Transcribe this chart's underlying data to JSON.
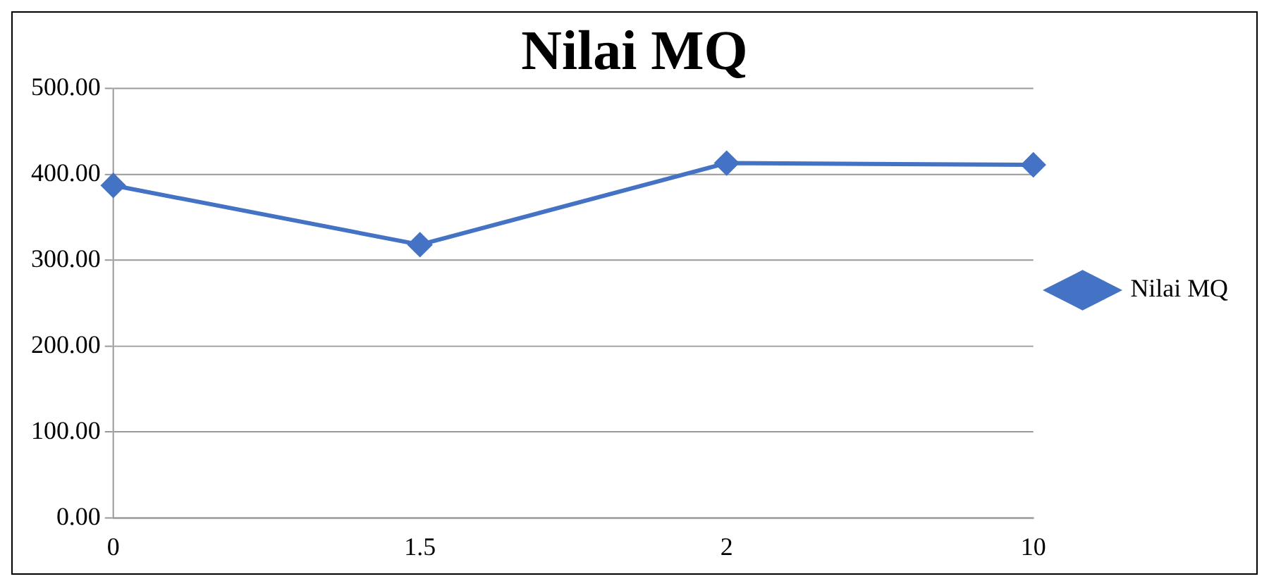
{
  "chart_data": {
    "type": "line",
    "title": "Nilai MQ",
    "categories": [
      "0",
      "1.5",
      "2",
      "10"
    ],
    "series": [
      {
        "name": "Nilai MQ",
        "color": "#4472c4",
        "values": [
          387,
          318,
          413,
          411
        ]
      }
    ],
    "ylim": [
      0,
      500
    ],
    "yticks": [
      {
        "value": 0,
        "label": "0.00"
      },
      {
        "value": 100,
        "label": "100.00"
      },
      {
        "value": 200,
        "label": "200.00"
      },
      {
        "value": 300,
        "label": "300.00"
      },
      {
        "value": 400,
        "label": "400.00"
      },
      {
        "value": 500,
        "label": "500.00"
      }
    ],
    "grid": "y",
    "legend": "right",
    "marker": "diamond",
    "line_style": "solid"
  }
}
